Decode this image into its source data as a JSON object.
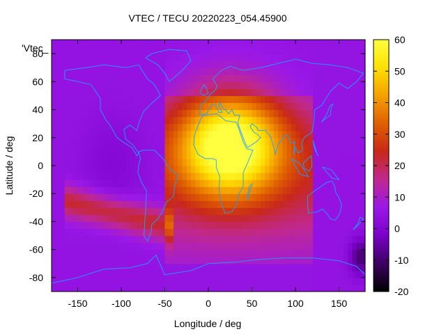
{
  "chart_data": {
    "type": "heatmap",
    "title": "VTEC / TECU 20220223_054.45900",
    "xlabel": "Longitude / deg",
    "ylabel": "Latitude / deg",
    "key_label": "'Vtec_",
    "xlim": [
      -180,
      180
    ],
    "ylim": [
      -90,
      90
    ],
    "x_ticks": [
      -150,
      -100,
      -50,
      0,
      50,
      100,
      150
    ],
    "y_ticks": [
      -80,
      -60,
      -40,
      -20,
      0,
      20,
      40,
      60,
      80
    ],
    "colorbar": {
      "range": [
        -20,
        60
      ],
      "ticks": [
        -20,
        -10,
        0,
        10,
        20,
        30,
        40,
        50,
        60
      ],
      "palette": [
        "#000000",
        "#3c0060",
        "#7a00c8",
        "#9a18e8",
        "#c02890",
        "#c82818",
        "#e06000",
        "#f5a000",
        "#ffe000",
        "#ffff40"
      ]
    },
    "coastline_color": "#1f9fff",
    "features": {
      "peak_vtec": 55,
      "peak_location": {
        "lon": 25,
        "lat": 15
      },
      "background_vtec": 5,
      "min_vtec": -10,
      "min_location": {
        "lon": 175,
        "lat": -65
      }
    }
  }
}
